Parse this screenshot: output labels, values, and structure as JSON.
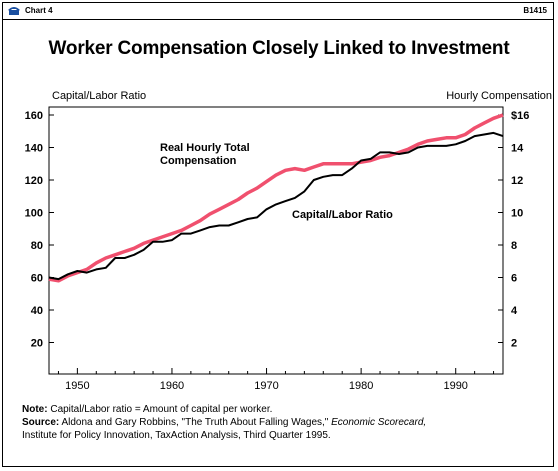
{
  "header": {
    "chart_label": "Chart 4",
    "code": "B1415"
  },
  "chart_data": {
    "type": "line",
    "title": "Worker Compensation Closely Linked to Investment",
    "ylabel_left": "Capital/Labor Ratio",
    "ylabel_right": "Hourly Compensation",
    "xlim": [
      1947,
      1995
    ],
    "ylim_left": [
      0,
      160
    ],
    "ylim_right": [
      0,
      16
    ],
    "x_ticks": [
      "1950",
      "1960",
      "1970",
      "1980",
      "1990"
    ],
    "y_ticks_left": [
      "20",
      "40",
      "60",
      "80",
      "100",
      "120",
      "140",
      "160"
    ],
    "y_ticks_right": [
      "2",
      "4",
      "6",
      "8",
      "10",
      "12",
      "14",
      "$16"
    ],
    "grid": false,
    "series": [
      {
        "name": "Capital/Labor Ratio",
        "axis": "left",
        "color": "#000000",
        "x": [
          1947,
          1948,
          1949,
          1950,
          1951,
          1952,
          1953,
          1954,
          1955,
          1956,
          1957,
          1958,
          1959,
          1960,
          1961,
          1962,
          1963,
          1964,
          1965,
          1966,
          1967,
          1968,
          1969,
          1970,
          1971,
          1972,
          1973,
          1974,
          1975,
          1976,
          1977,
          1978,
          1979,
          1980,
          1981,
          1982,
          1983,
          1984,
          1985,
          1986,
          1987,
          1988,
          1989,
          1990,
          1991,
          1992,
          1993,
          1994,
          1995
        ],
        "values": [
          60,
          59,
          62,
          64,
          63,
          65,
          66,
          72,
          72,
          74,
          77,
          82,
          82,
          83,
          87,
          87,
          89,
          91,
          92,
          92,
          94,
          96,
          97,
          102,
          105,
          107,
          109,
          113,
          120,
          122,
          123,
          123,
          127,
          132,
          133,
          137,
          137,
          136,
          137,
          140,
          141,
          141,
          141,
          142,
          144,
          147,
          148,
          149,
          147
        ]
      },
      {
        "name": "Real Hourly Total Compensation",
        "axis": "right",
        "color": "#f0506e",
        "x": [
          1947,
          1948,
          1949,
          1950,
          1951,
          1952,
          1953,
          1954,
          1955,
          1956,
          1957,
          1958,
          1959,
          1960,
          1961,
          1962,
          1963,
          1964,
          1965,
          1966,
          1967,
          1968,
          1969,
          1970,
          1971,
          1972,
          1973,
          1974,
          1975,
          1976,
          1977,
          1978,
          1979,
          1980,
          1981,
          1982,
          1983,
          1984,
          1985,
          1986,
          1987,
          1988,
          1989,
          1990,
          1991,
          1992,
          1993,
          1994,
          1995
        ],
        "values": [
          5.9,
          5.8,
          6.1,
          6.3,
          6.5,
          6.9,
          7.2,
          7.4,
          7.6,
          7.8,
          8.1,
          8.3,
          8.5,
          8.7,
          8.9,
          9.2,
          9.5,
          9.9,
          10.2,
          10.5,
          10.8,
          11.2,
          11.5,
          11.9,
          12.3,
          12.6,
          12.7,
          12.6,
          12.8,
          13.0,
          13.0,
          13.0,
          13.0,
          13.1,
          13.2,
          13.4,
          13.5,
          13.7,
          13.9,
          14.2,
          14.4,
          14.5,
          14.6,
          14.6,
          14.8,
          15.2,
          15.5,
          15.8,
          16.0
        ]
      }
    ],
    "annotations": {
      "compensation_line1": "Real Hourly Total",
      "compensation_line2": "Compensation",
      "ratio": "Capital/Labor Ratio"
    }
  },
  "notes": {
    "note_label": "Note:",
    "note_text": " Capital/Labor ratio = Amount of capital per worker.",
    "source_label": "Source:",
    "source_text": " Aldona and Gary Robbins, \"The Truth About Falling Wages,\" ",
    "source_pub": "Economic Scorecard,",
    "source_line2": "Institute for Policy Innovation, TaxAction Analysis, Third Quarter 1995."
  }
}
